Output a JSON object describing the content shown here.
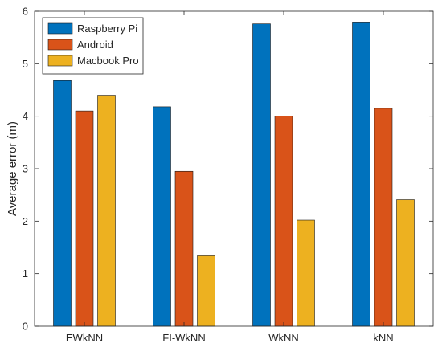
{
  "chart_data": {
    "type": "bar",
    "title": "",
    "xlabel": "",
    "ylabel": "Average error (m)",
    "ylim": [
      0,
      6
    ],
    "yticks": [
      0,
      1,
      2,
      3,
      4,
      5,
      6
    ],
    "grid": false,
    "legend_position": "top-left",
    "categories": [
      "EWkNN",
      "FI-WkNN",
      "WkNN",
      "kNN"
    ],
    "series": [
      {
        "name": "Raspberry Pi",
        "color": "#0072BD",
        "values": [
          4.68,
          4.18,
          5.76,
          5.78
        ]
      },
      {
        "name": "Android",
        "color": "#D95319",
        "values": [
          4.1,
          2.95,
          4.0,
          4.15
        ]
      },
      {
        "name": "Macbook Pro",
        "color": "#EDB120",
        "values": [
          4.4,
          1.34,
          2.02,
          2.41
        ]
      }
    ]
  }
}
